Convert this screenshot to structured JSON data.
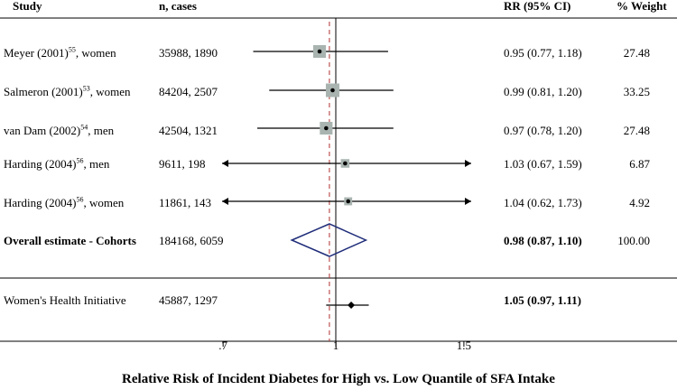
{
  "headers": {
    "study": "Study",
    "n_cases": "n, cases",
    "rr": "RR (95% CI)",
    "weight": "% Weight"
  },
  "chart_data": {
    "type": "forest",
    "scale": "log",
    "null_value": 1,
    "overall_reference_value": 0.98,
    "xlim": [
      0.5,
      2.0
    ],
    "x_ticks": [
      0.7,
      1,
      1.5
    ],
    "x_tick_labels": [
      ".7",
      "1",
      "1.5"
    ],
    "xlabel": "Relative Risk of Incident Diabetes for High vs. Low Quantile of SFA Intake",
    "studies": [
      {
        "name": "Meyer (2001)",
        "sup": "55",
        "suffix": ", women",
        "n_cases": "35988, 1890",
        "rr": 0.95,
        "lo": 0.77,
        "hi": 1.18,
        "rr_text": "0.95  (0.77, 1.18)",
        "weight": "27.48",
        "weight_value": 27.48,
        "arrow_left": false,
        "arrow_right": false
      },
      {
        "name": "Salmeron (2001)",
        "sup": "53",
        "suffix": ", women",
        "n_cases": "84204, 2507",
        "rr": 0.99,
        "lo": 0.81,
        "hi": 1.2,
        "rr_text": "0.99  (0.81, 1.20)",
        "weight": "33.25",
        "weight_value": 33.25,
        "arrow_left": false,
        "arrow_right": false
      },
      {
        "name": "van Dam (2002)",
        "sup": "54",
        "suffix": ", men",
        "n_cases": "42504, 1321",
        "rr": 0.97,
        "lo": 0.78,
        "hi": 1.2,
        "rr_text": "0.97  (0.78, 1.20)",
        "weight": "27.48",
        "weight_value": 27.48,
        "arrow_left": false,
        "arrow_right": false
      },
      {
        "name": "Harding (2004)",
        "sup": "56",
        "suffix": ", men",
        "n_cases": "9611, 198",
        "rr": 1.03,
        "lo": 0.67,
        "hi": 1.59,
        "rr_text": "1.03  (0.67, 1.59)",
        "weight": "6.87",
        "weight_value": 6.87,
        "arrow_left": true,
        "arrow_right": true
      },
      {
        "name": "Harding (2004)",
        "sup": "56",
        "suffix": ", women",
        "n_cases": "11861, 143",
        "rr": 1.04,
        "lo": 0.62,
        "hi": 1.73,
        "rr_text": "1.04  (0.62, 1.73)",
        "weight": "4.92",
        "weight_value": 4.92,
        "arrow_left": true,
        "arrow_right": true
      }
    ],
    "overall": {
      "name": "Overall estimate - Cohorts",
      "n_cases": "184168, 6059",
      "rr": 0.98,
      "lo": 0.87,
      "hi": 1.1,
      "rr_text": "0.98  (0.87, 1.10)",
      "weight": "100.00"
    },
    "trial": {
      "name": "Women's Health Initiative",
      "n_cases": "45887, 1297",
      "rr": 1.05,
      "lo": 0.97,
      "hi": 1.11,
      "rr_text": "1.05 (0.97, 1.11)"
    },
    "colors": {
      "marker_box": "#a9b4b0",
      "diamond": "#1f2d7a",
      "reference_line": "#b03030",
      "line": "#000000"
    }
  }
}
